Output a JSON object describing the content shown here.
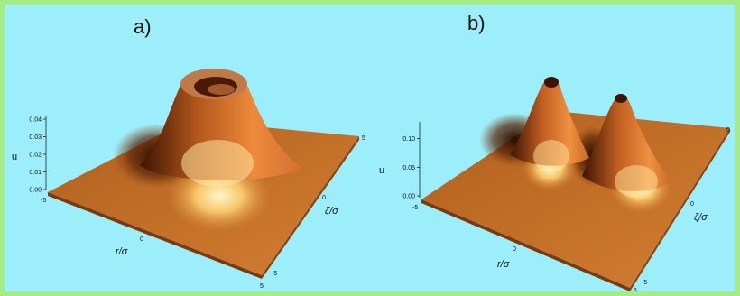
{
  "chart_data": [
    {
      "type": "surface3d",
      "panel_label": "a)",
      "shape": "ring",
      "x_axis": {
        "label": "r/σ",
        "ticks": [
          "-5",
          "0",
          "5"
        ],
        "range": [
          -5,
          5
        ]
      },
      "y_axis": {
        "label": "ζ/σ",
        "ticks": [
          "-5",
          "0",
          "5"
        ],
        "range": [
          -5,
          5
        ]
      },
      "z_axis": {
        "label": "u",
        "ticks": [
          "0.00",
          "0.01",
          "0.02",
          "0.03",
          "0.04"
        ],
        "range": [
          0,
          0.04
        ]
      },
      "surface_color": "#c86a20"
    },
    {
      "type": "surface3d",
      "panel_label": "b)",
      "shape": "two-peaks",
      "x_axis": {
        "label": "r/σ",
        "ticks": [
          "-5",
          "0",
          "5"
        ],
        "range": [
          -5,
          5
        ]
      },
      "y_axis": {
        "label": "ζ/σ",
        "ticks": [
          "-5",
          "0",
          "5"
        ],
        "range": [
          -5,
          5
        ]
      },
      "z_axis": {
        "label": "u",
        "ticks": [
          "0.00",
          "0.05",
          "0.10"
        ],
        "range": [
          0,
          0.12
        ]
      },
      "surface_color": "#c86a20"
    }
  ]
}
